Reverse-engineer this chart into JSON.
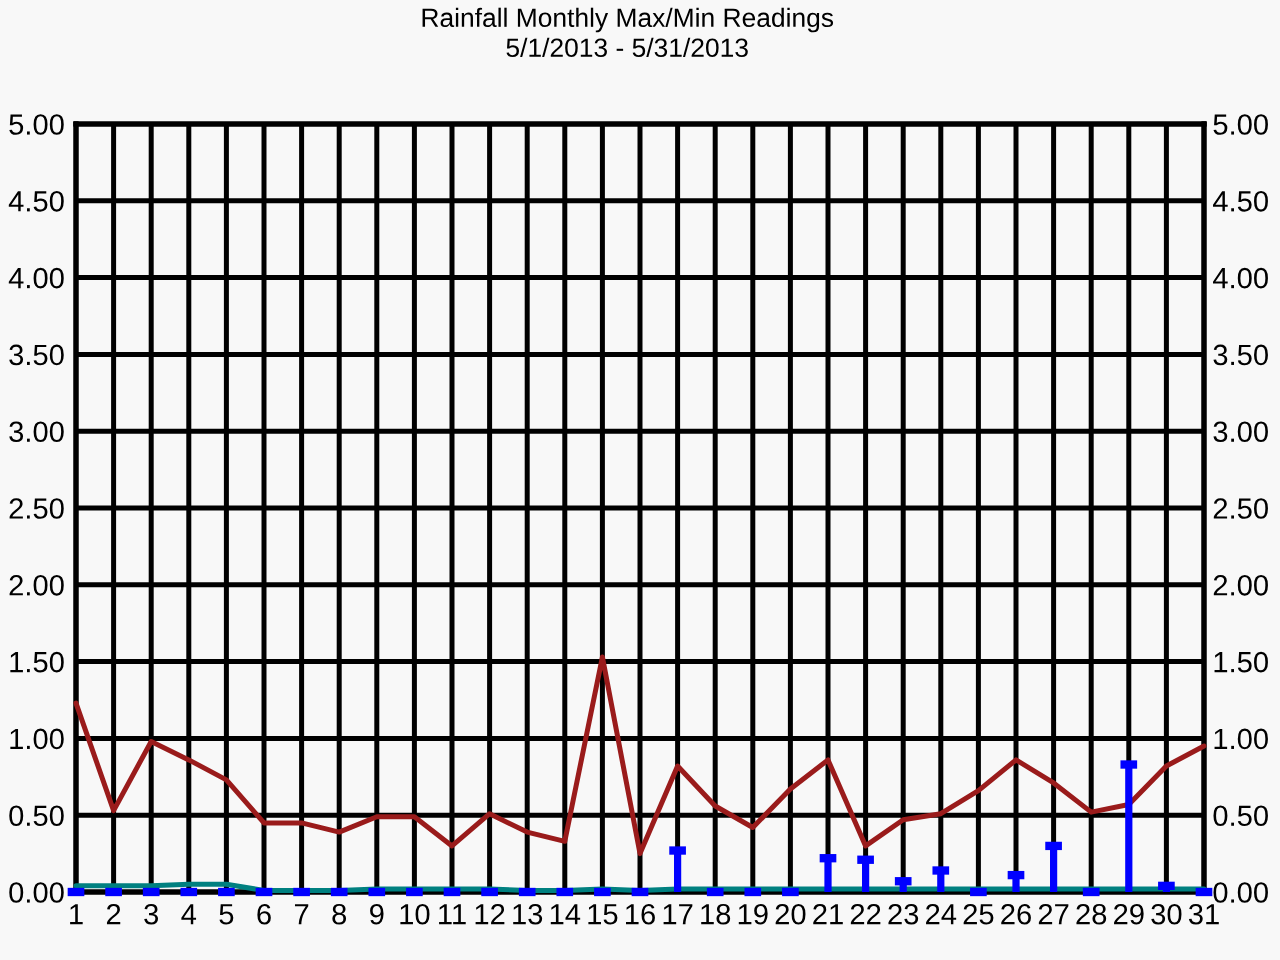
{
  "chart_data": {
    "type": "line",
    "title": "Rainfall Monthly Max/Min Readings",
    "subtitle": "5/1/2013 - 5/31/2013",
    "categories": [
      "1",
      "2",
      "3",
      "4",
      "5",
      "6",
      "7",
      "8",
      "9",
      "10",
      "11",
      "12",
      "13",
      "14",
      "15",
      "16",
      "17",
      "18",
      "19",
      "20",
      "21",
      "22",
      "23",
      "24",
      "25",
      "26",
      "27",
      "28",
      "29",
      "30",
      "31"
    ],
    "series": [
      {
        "color": "#9a1b1b",
        "values": [
          1.23,
          0.53,
          0.98,
          0.86,
          0.73,
          0.45,
          0.45,
          0.39,
          0.49,
          0.49,
          0.3,
          0.51,
          0.39,
          0.33,
          1.53,
          0.25,
          0.82,
          0.56,
          0.42,
          0.67,
          0.86,
          0.3,
          0.47,
          0.51,
          0.66,
          0.86,
          0.71,
          0.52,
          0.57,
          0.82,
          0.95
        ]
      },
      {
        "color": "#008080",
        "values": [
          0.04,
          0.04,
          0.04,
          0.05,
          0.05,
          0.01,
          0.01,
          0.01,
          0.02,
          0.02,
          0.02,
          0.02,
          0.01,
          0.01,
          0.02,
          0.01,
          0.02,
          0.02,
          0.02,
          0.02,
          0.02,
          0.02,
          0.02,
          0.02,
          0.02,
          0.02,
          0.02,
          0.02,
          0.02,
          0.02,
          0.02
        ]
      },
      {
        "type": "lollipop",
        "color": "#0000ff",
        "values": [
          0,
          0,
          0,
          0,
          0,
          0,
          0,
          0,
          0,
          0,
          0,
          0,
          0,
          0,
          0,
          0,
          0.27,
          0,
          0,
          0,
          0.22,
          0.21,
          0.07,
          0.14,
          0,
          0.11,
          0.3,
          0,
          0.83,
          0.04,
          0
        ]
      }
    ],
    "ylim": [
      0,
      5
    ],
    "yticks": [
      {
        "value": 0,
        "label": "0.00"
      },
      {
        "value": 0.5,
        "label": "0.50"
      },
      {
        "value": 1,
        "label": "1.00"
      },
      {
        "value": 1.5,
        "label": "1.50"
      },
      {
        "value": 2,
        "label": "2.00"
      },
      {
        "value": 2.5,
        "label": "2.50"
      },
      {
        "value": 3,
        "label": "3.00"
      },
      {
        "value": 3.5,
        "label": "3.50"
      },
      {
        "value": 4,
        "label": "4.00"
      },
      {
        "value": 4.5,
        "label": "4.50"
      },
      {
        "value": 5,
        "label": "5.00"
      }
    ],
    "y2lim": [
      0,
      5
    ],
    "y2ticks": [
      {
        "value": 0,
        "label": "0.00"
      },
      {
        "value": 0.5,
        "label": "0.50"
      },
      {
        "value": 1,
        "label": "1.00"
      },
      {
        "value": 1.5,
        "label": "1.50"
      },
      {
        "value": 2,
        "label": "2.00"
      },
      {
        "value": 2.5,
        "label": "2.50"
      },
      {
        "value": 3,
        "label": "3.00"
      },
      {
        "value": 3.5,
        "label": "3.50"
      },
      {
        "value": 4,
        "label": "4.00"
      },
      {
        "value": 4.5,
        "label": "4.50"
      },
      {
        "value": 5,
        "label": "5.00"
      }
    ],
    "grid": true
  }
}
